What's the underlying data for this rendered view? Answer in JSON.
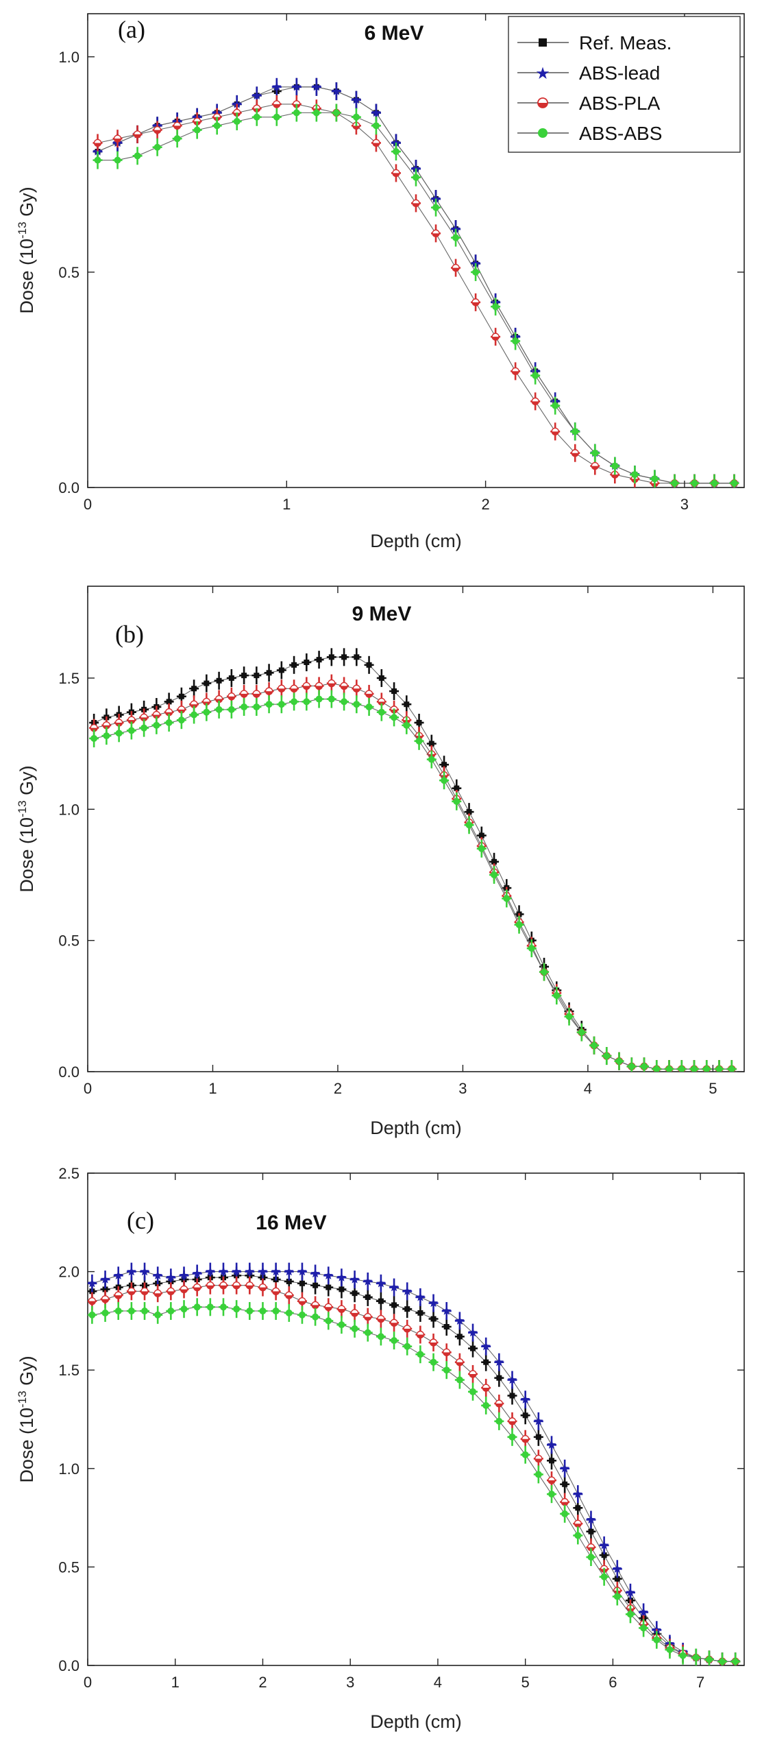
{
  "chart_data": [
    {
      "type": "line",
      "panel_label": "(a)",
      "title": "6 MeV",
      "xlabel": "Depth (cm)",
      "ylabel": "Dose (10",
      "ylabel_sup": "-13",
      "ylabel_tail": " Gy)",
      "xlim": [
        0,
        3.3
      ],
      "ylim": [
        0,
        1.1
      ],
      "xticks": [
        0,
        1,
        2,
        3
      ],
      "xtick_labels": [
        "0",
        "1",
        "2",
        "3"
      ],
      "yticks": [
        0,
        0.5,
        1.0
      ],
      "ytick_labels": [
        "0.0",
        "0.5",
        "1.0"
      ],
      "legend": {
        "placement": "top-right",
        "entries": [
          "Ref. Meas.",
          "ABS-lead",
          "ABS-PLA",
          "ABS-ABS"
        ]
      },
      "x": [
        0.05,
        0.15,
        0.25,
        0.35,
        0.45,
        0.55,
        0.65,
        0.75,
        0.85,
        0.95,
        1.05,
        1.15,
        1.25,
        1.35,
        1.45,
        1.55,
        1.65,
        1.75,
        1.85,
        1.95,
        2.05,
        2.15,
        2.25,
        2.35,
        2.45,
        2.55,
        2.65,
        2.75,
        2.85,
        2.95,
        3.05,
        3.15,
        3.25
      ],
      "series": [
        {
          "name": "Ref. Meas.",
          "color": "#111111",
          "marker": "square",
          "values": [
            0.78,
            0.8,
            0.82,
            0.84,
            0.85,
            0.86,
            0.87,
            0.89,
            0.91,
            0.92,
            0.93,
            0.93,
            0.92,
            0.9,
            0.87,
            0.8,
            0.74,
            0.67,
            0.6,
            0.52,
            0.43,
            0.35,
            0.27,
            0.2,
            0.13,
            0.08,
            0.05,
            0.03,
            0.02,
            0.01,
            0.01,
            0.01,
            0.01
          ]
        },
        {
          "name": "ABS-lead",
          "color": "#1f1faa",
          "marker": "star",
          "values": [
            0.78,
            0.8,
            0.82,
            0.84,
            0.85,
            0.86,
            0.87,
            0.89,
            0.91,
            0.93,
            0.93,
            0.93,
            0.92,
            0.9,
            0.87,
            0.8,
            0.74,
            0.67,
            0.6,
            0.52,
            0.43,
            0.35,
            0.27,
            0.2,
            0.13,
            0.08,
            0.05,
            0.03,
            0.02,
            0.01,
            0.01,
            0.01,
            0.01
          ]
        },
        {
          "name": "ABS-PLA",
          "color": "#d32f2f",
          "marker": "half-circle",
          "values": [
            0.8,
            0.81,
            0.82,
            0.83,
            0.84,
            0.85,
            0.86,
            0.87,
            0.88,
            0.89,
            0.89,
            0.88,
            0.87,
            0.84,
            0.8,
            0.73,
            0.66,
            0.59,
            0.51,
            0.43,
            0.35,
            0.27,
            0.2,
            0.13,
            0.08,
            0.05,
            0.03,
            0.02,
            0.01,
            0.01,
            0.01,
            0.01,
            0.01
          ]
        },
        {
          "name": "ABS-ABS",
          "color": "#3ad13a",
          "marker": "circle",
          "values": [
            0.76,
            0.76,
            0.77,
            0.79,
            0.81,
            0.83,
            0.84,
            0.85,
            0.86,
            0.86,
            0.87,
            0.87,
            0.87,
            0.86,
            0.84,
            0.78,
            0.72,
            0.65,
            0.58,
            0.5,
            0.42,
            0.34,
            0.26,
            0.19,
            0.13,
            0.08,
            0.05,
            0.03,
            0.02,
            0.01,
            0.01,
            0.01,
            0.01
          ]
        }
      ]
    },
    {
      "type": "line",
      "panel_label": "(b)",
      "title": "9 MeV",
      "xlabel": "Depth (cm)",
      "ylabel": "Dose (10",
      "ylabel_sup": "-13",
      "ylabel_tail": " Gy)",
      "xlim": [
        0,
        5.25
      ],
      "ylim": [
        0,
        1.85
      ],
      "xticks": [
        0,
        1,
        2,
        3,
        4,
        5
      ],
      "xtick_labels": [
        "0",
        "1",
        "2",
        "3",
        "4",
        "5"
      ],
      "yticks": [
        0,
        0.5,
        1.0,
        1.5
      ],
      "ytick_labels": [
        "0.0",
        "0.5",
        "1.0",
        "1.5"
      ],
      "x": [
        0.05,
        0.15,
        0.25,
        0.35,
        0.45,
        0.55,
        0.65,
        0.75,
        0.85,
        0.95,
        1.05,
        1.15,
        1.25,
        1.35,
        1.45,
        1.55,
        1.65,
        1.75,
        1.85,
        1.95,
        2.05,
        2.15,
        2.25,
        2.35,
        2.45,
        2.55,
        2.65,
        2.75,
        2.85,
        2.95,
        3.05,
        3.15,
        3.25,
        3.35,
        3.45,
        3.55,
        3.65,
        3.75,
        3.85,
        3.95,
        4.05,
        4.15,
        4.25,
        4.35,
        4.45,
        4.55,
        4.65,
        4.75,
        4.85,
        4.95,
        5.05,
        5.15
      ],
      "series": [
        {
          "name": "Ref. Meas.",
          "color": "#111111",
          "marker": "square",
          "values": [
            1.33,
            1.35,
            1.36,
            1.37,
            1.38,
            1.39,
            1.41,
            1.43,
            1.46,
            1.48,
            1.49,
            1.5,
            1.51,
            1.51,
            1.52,
            1.53,
            1.55,
            1.56,
            1.57,
            1.58,
            1.58,
            1.58,
            1.55,
            1.5,
            1.45,
            1.4,
            1.33,
            1.25,
            1.17,
            1.08,
            0.99,
            0.9,
            0.8,
            0.7,
            0.6,
            0.5,
            0.4,
            0.31,
            0.23,
            0.16,
            0.1,
            0.06,
            0.04,
            0.02,
            0.02,
            0.01,
            0.01,
            0.01,
            0.01,
            0.01,
            0.01,
            0.01
          ]
        },
        {
          "name": "ABS-PLA",
          "color": "#d32f2f",
          "marker": "half-circle",
          "values": [
            1.31,
            1.32,
            1.33,
            1.34,
            1.35,
            1.36,
            1.37,
            1.38,
            1.4,
            1.41,
            1.42,
            1.43,
            1.44,
            1.44,
            1.45,
            1.46,
            1.46,
            1.47,
            1.47,
            1.48,
            1.47,
            1.46,
            1.44,
            1.41,
            1.38,
            1.34,
            1.28,
            1.21,
            1.13,
            1.04,
            0.95,
            0.86,
            0.76,
            0.67,
            0.57,
            0.48,
            0.38,
            0.3,
            0.22,
            0.15,
            0.1,
            0.06,
            0.04,
            0.02,
            0.02,
            0.01,
            0.01,
            0.01,
            0.01,
            0.01,
            0.01,
            0.01
          ]
        },
        {
          "name": "ABS-ABS",
          "color": "#3ad13a",
          "marker": "circle",
          "values": [
            1.27,
            1.28,
            1.29,
            1.3,
            1.31,
            1.32,
            1.33,
            1.34,
            1.36,
            1.37,
            1.38,
            1.38,
            1.39,
            1.39,
            1.4,
            1.4,
            1.41,
            1.41,
            1.42,
            1.42,
            1.41,
            1.4,
            1.39,
            1.37,
            1.35,
            1.32,
            1.26,
            1.19,
            1.11,
            1.03,
            0.94,
            0.85,
            0.75,
            0.66,
            0.56,
            0.47,
            0.38,
            0.29,
            0.21,
            0.15,
            0.1,
            0.06,
            0.04,
            0.02,
            0.02,
            0.01,
            0.01,
            0.01,
            0.01,
            0.01,
            0.01,
            0.01
          ]
        }
      ]
    },
    {
      "type": "line",
      "panel_label": "(c)",
      "title": "16 MeV",
      "xlabel": "Depth (cm)",
      "ylabel": "Dose (10",
      "ylabel_sup": "-13",
      "ylabel_tail": " Gy)",
      "xlim": [
        0,
        7.5
      ],
      "ylim": [
        0,
        2.5
      ],
      "xticks": [
        0,
        1,
        2,
        3,
        4,
        5,
        6,
        7
      ],
      "xtick_labels": [
        "0",
        "1",
        "2",
        "3",
        "4",
        "5",
        "6",
        "7"
      ],
      "yticks": [
        0,
        0.5,
        1.0,
        1.5,
        2.0,
        2.5
      ],
      "ytick_labels": [
        "0.0",
        "0.5",
        "1.0",
        "1.5",
        "2.0",
        "2.5"
      ],
      "x": [
        0.05,
        0.2,
        0.35,
        0.5,
        0.65,
        0.8,
        0.95,
        1.1,
        1.25,
        1.4,
        1.55,
        1.7,
        1.85,
        2.0,
        2.15,
        2.3,
        2.45,
        2.6,
        2.75,
        2.9,
        3.05,
        3.2,
        3.35,
        3.5,
        3.65,
        3.8,
        3.95,
        4.1,
        4.25,
        4.4,
        4.55,
        4.7,
        4.85,
        5.0,
        5.15,
        5.3,
        5.45,
        5.6,
        5.75,
        5.9,
        6.05,
        6.2,
        6.35,
        6.5,
        6.65,
        6.8,
        6.95,
        7.1,
        7.25,
        7.4
      ],
      "series": [
        {
          "name": "Ref. Meas.",
          "color": "#111111",
          "marker": "square",
          "values": [
            1.9,
            1.91,
            1.92,
            1.93,
            1.93,
            1.94,
            1.95,
            1.96,
            1.96,
            1.97,
            1.97,
            1.98,
            1.98,
            1.97,
            1.96,
            1.95,
            1.94,
            1.93,
            1.92,
            1.91,
            1.89,
            1.87,
            1.85,
            1.83,
            1.81,
            1.79,
            1.76,
            1.72,
            1.67,
            1.61,
            1.54,
            1.46,
            1.37,
            1.27,
            1.16,
            1.04,
            0.92,
            0.8,
            0.68,
            0.56,
            0.44,
            0.33,
            0.24,
            0.16,
            0.1,
            0.06,
            0.04,
            0.03,
            0.02,
            0.02
          ]
        },
        {
          "name": "ABS-lead",
          "color": "#1f1faa",
          "marker": "star",
          "values": [
            1.94,
            1.96,
            1.98,
            2.0,
            2.0,
            1.98,
            1.97,
            1.98,
            1.99,
            2.0,
            2.0,
            2.0,
            2.0,
            2.0,
            2.0,
            2.0,
            2.0,
            1.99,
            1.98,
            1.97,
            1.96,
            1.95,
            1.94,
            1.92,
            1.9,
            1.87,
            1.84,
            1.8,
            1.75,
            1.69,
            1.62,
            1.54,
            1.45,
            1.35,
            1.24,
            1.12,
            1.0,
            0.87,
            0.74,
            0.61,
            0.49,
            0.37,
            0.27,
            0.18,
            0.11,
            0.07,
            0.04,
            0.03,
            0.02,
            0.02
          ]
        },
        {
          "name": "ABS-PLA",
          "color": "#d32f2f",
          "marker": "half-circle",
          "values": [
            1.85,
            1.86,
            1.88,
            1.9,
            1.9,
            1.89,
            1.9,
            1.91,
            1.92,
            1.93,
            1.93,
            1.93,
            1.93,
            1.92,
            1.9,
            1.88,
            1.85,
            1.83,
            1.82,
            1.81,
            1.79,
            1.77,
            1.76,
            1.74,
            1.71,
            1.68,
            1.64,
            1.59,
            1.54,
            1.48,
            1.41,
            1.33,
            1.24,
            1.15,
            1.05,
            0.94,
            0.83,
            0.72,
            0.6,
            0.49,
            0.38,
            0.29,
            0.21,
            0.14,
            0.09,
            0.06,
            0.04,
            0.03,
            0.02,
            0.02
          ]
        },
        {
          "name": "ABS-ABS",
          "color": "#3ad13a",
          "marker": "circle",
          "values": [
            1.78,
            1.79,
            1.8,
            1.8,
            1.8,
            1.78,
            1.8,
            1.81,
            1.82,
            1.82,
            1.82,
            1.81,
            1.8,
            1.8,
            1.8,
            1.79,
            1.78,
            1.77,
            1.75,
            1.73,
            1.71,
            1.69,
            1.67,
            1.65,
            1.62,
            1.58,
            1.54,
            1.5,
            1.45,
            1.39,
            1.32,
            1.24,
            1.16,
            1.07,
            0.97,
            0.87,
            0.77,
            0.66,
            0.55,
            0.45,
            0.35,
            0.26,
            0.19,
            0.13,
            0.08,
            0.05,
            0.04,
            0.03,
            0.02,
            0.02
          ]
        }
      ]
    }
  ]
}
